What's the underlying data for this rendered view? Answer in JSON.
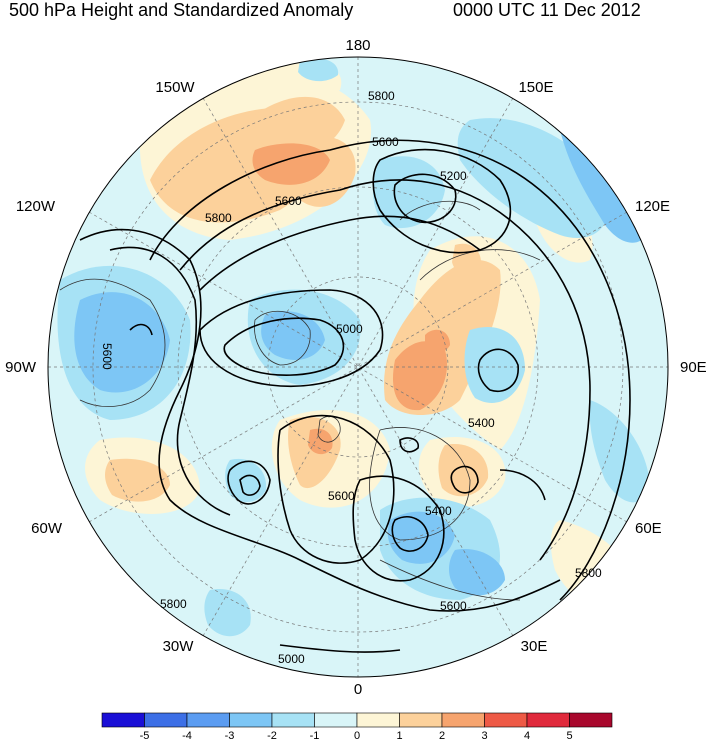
{
  "title": {
    "left": "500 hPa Height and Standardized Anomaly",
    "right": "0000 UTC 11 Dec 2012"
  },
  "map": {
    "projection": "north-polar-stereographic",
    "longitude_labels": {
      "top": "180",
      "bottom": "0",
      "left": "90W",
      "right": "90E",
      "upper_left": "150W",
      "upper_right": "150E",
      "mid_upper_left": "120W",
      "mid_upper_right": "120E",
      "mid_lower_left": "60W",
      "mid_lower_right": "60E",
      "lower_left": "30W",
      "lower_right": "30E"
    },
    "contour_labels": [
      "5800",
      "5600",
      "5200",
      "5800",
      "5600",
      "5000",
      "5600",
      "5400",
      "5400",
      "5600",
      "5800",
      "5600",
      "5800",
      "5000"
    ]
  },
  "colorbar": {
    "colors": [
      "#1a0fd6",
      "#3c6fe6",
      "#5b9cf1",
      "#7dc6f5",
      "#a7e2f5",
      "#d9f5f8",
      "#fdf5d6",
      "#fcd19b",
      "#f6a46e",
      "#ee5a46",
      "#e02a3c",
      "#a8072c"
    ],
    "tick_labels": [
      "-5",
      "-4",
      "-3",
      "-2",
      "-1",
      "0",
      "1",
      "2",
      "3",
      "4",
      "5"
    ]
  }
}
